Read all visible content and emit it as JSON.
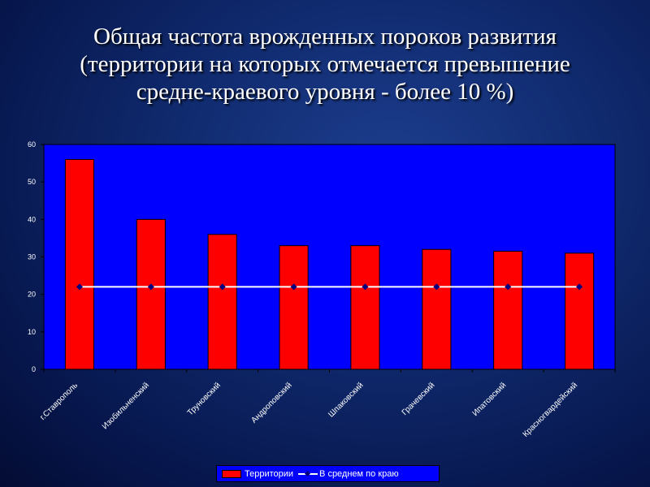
{
  "title": {
    "line1": "Общая частота врожденных пороков развития",
    "line2": "(территории на которых отмечается превышение",
    "line3": "средне-краевого уровня - более 10 %)"
  },
  "chart_data": {
    "type": "bar",
    "categories": [
      "г.Ставрополь",
      "Изобильненский",
      "Труновский",
      "Андроповский",
      "Шпаковский",
      "Грачевский",
      "Ипатовский",
      "Красногвардейский"
    ],
    "series": [
      {
        "name": "Территории",
        "type": "bar",
        "values": [
          56,
          40,
          36,
          33,
          33,
          32,
          31.5,
          31
        ],
        "color": "#ff0000"
      },
      {
        "name": "В среднем  по краю",
        "type": "line",
        "values": [
          22,
          22,
          22,
          22,
          22,
          22,
          22,
          22
        ],
        "color": "#ffffff",
        "marker_color": "#000080"
      }
    ],
    "ylim": [
      0,
      60
    ],
    "yticks": [
      "0",
      "10",
      "20",
      "30",
      "40",
      "50",
      "60"
    ],
    "plot_background": "#0000ff",
    "grid": false,
    "legend": "bottom"
  },
  "legend": {
    "bar_label": "Территории",
    "line_label": "В среднем  по краю"
  }
}
